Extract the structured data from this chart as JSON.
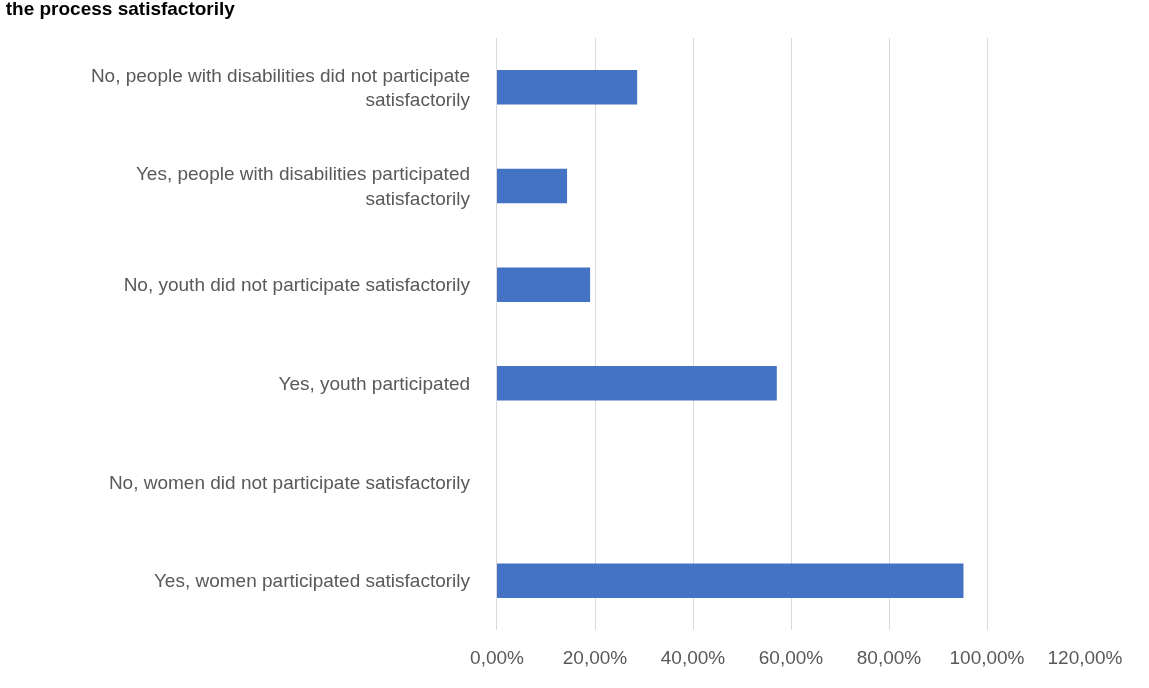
{
  "chart_data": {
    "type": "bar",
    "orientation": "horizontal",
    "title": "the process satisfactorily",
    "categories": [
      "No, people with disabilities did not participate satisfactorily",
      "Yes, people with disabilities participated satisfactorily",
      "No, youth did not participate satisfactorily",
      "Yes, youth participated",
      "No, women did not participate satisfactorily",
      "Yes, women participated satisfactorily"
    ],
    "values": [
      28.6,
      14.3,
      19.0,
      57.1,
      0,
      95.2
    ],
    "color": "#4472c4",
    "xlim": [
      0,
      120
    ],
    "xticks": [
      {
        "value": 0,
        "label": "0,00%"
      },
      {
        "value": 20,
        "label": "20,00%"
      },
      {
        "value": 40,
        "label": "40,00%"
      },
      {
        "value": 60,
        "label": "60,00%"
      },
      {
        "value": 80,
        "label": "80,00%"
      },
      {
        "value": 100,
        "label": "100,00%"
      },
      {
        "value": 120,
        "label": "120,00%"
      }
    ],
    "grid": "x"
  }
}
